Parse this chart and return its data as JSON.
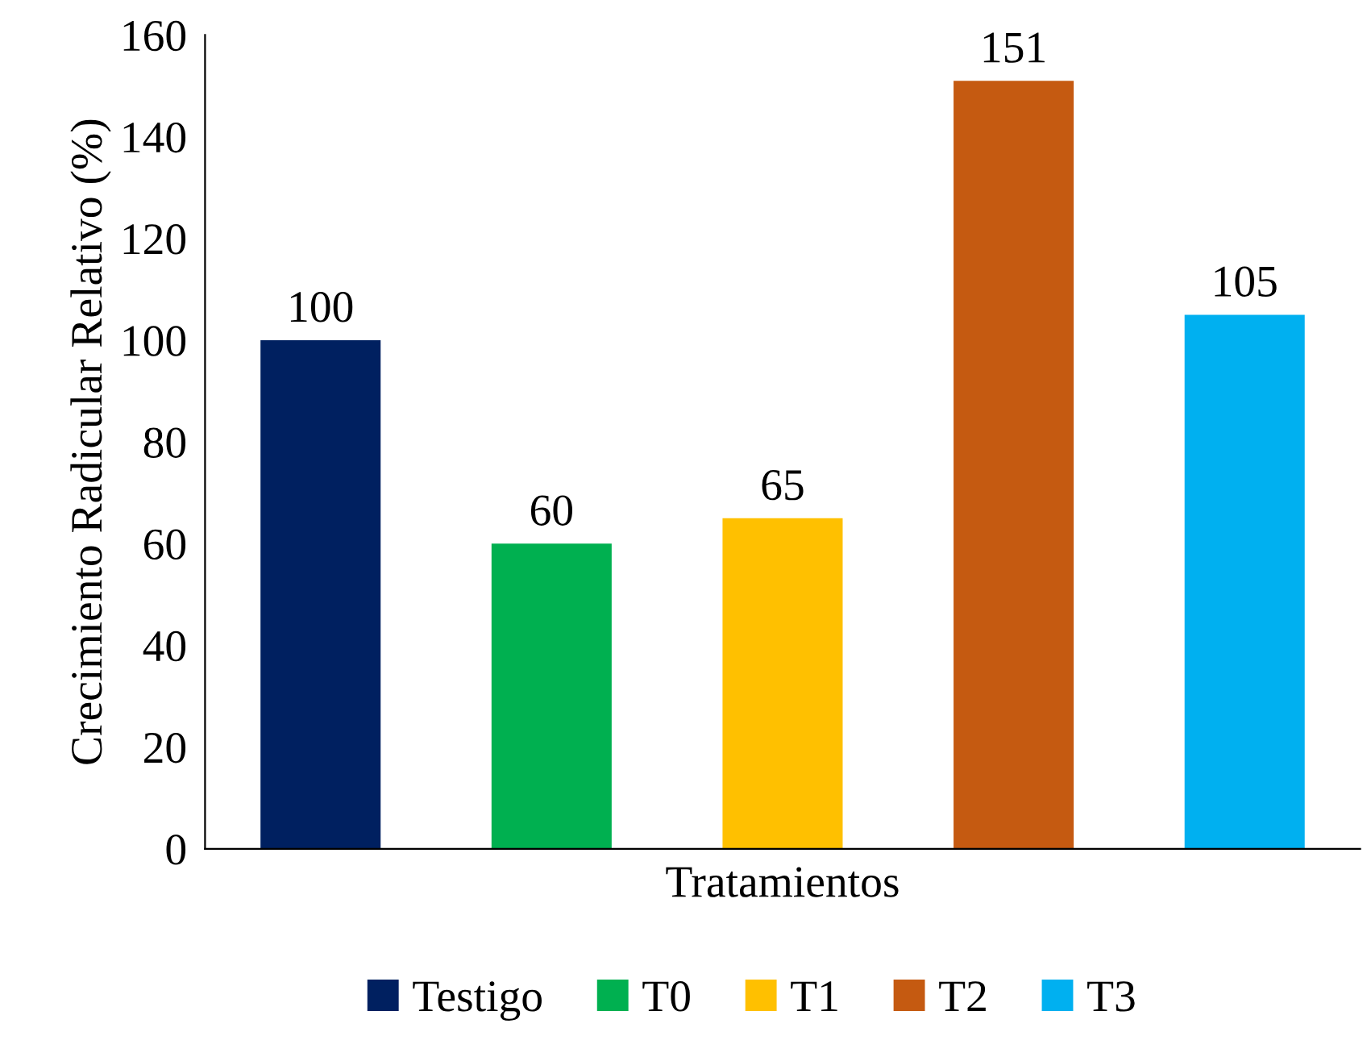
{
  "chart_data": {
    "type": "bar",
    "xlabel": "Tratamientos",
    "ylabel": "Crecimiento Radicular Relativo (%)",
    "categories": [
      null,
      null,
      null,
      null,
      null
    ],
    "series": [
      {
        "name": "Testigo",
        "color": "#002060",
        "values": [
          100,
          null,
          null,
          null,
          null
        ]
      },
      {
        "name": "T0",
        "color": "#00b050",
        "values": [
          null,
          60,
          null,
          null,
          null
        ]
      },
      {
        "name": "T1",
        "color": "#ffc000",
        "values": [
          null,
          null,
          65,
          null,
          null
        ]
      },
      {
        "name": "T2",
        "color": "#c55a11",
        "values": [
          null,
          null,
          null,
          151,
          null
        ]
      },
      {
        "name": "T3",
        "color": "#00b0f0",
        "values": [
          null,
          null,
          null,
          null,
          105
        ]
      }
    ],
    "ylim": [
      0,
      160
    ],
    "yticks": [
      0,
      20,
      40,
      60,
      80,
      100,
      120,
      140,
      160
    ],
    "data_labels": true,
    "grid": false,
    "legend": "bottom"
  }
}
